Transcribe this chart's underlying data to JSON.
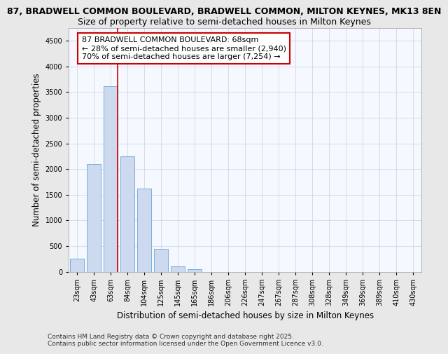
{
  "title_line1": "87, BRADWELL COMMON BOULEVARD, BRADWELL COMMON, MILTON KEYNES, MK13 8EN",
  "title_line2": "Size of property relative to semi-detached houses in Milton Keynes",
  "xlabel": "Distribution of semi-detached houses by size in Milton Keynes",
  "ylabel": "Number of semi-detached properties",
  "footnote": "Contains HM Land Registry data © Crown copyright and database right 2025.\nContains public sector information licensed under the Open Government Licence v3.0.",
  "categories": [
    "23sqm",
    "43sqm",
    "63sqm",
    "84sqm",
    "104sqm",
    "125sqm",
    "145sqm",
    "165sqm",
    "186sqm",
    "206sqm",
    "226sqm",
    "247sqm",
    "267sqm",
    "287sqm",
    "308sqm",
    "328sqm",
    "349sqm",
    "369sqm",
    "389sqm",
    "410sqm",
    "430sqm"
  ],
  "values": [
    250,
    2100,
    3620,
    2250,
    1620,
    440,
    100,
    50,
    0,
    0,
    0,
    0,
    0,
    0,
    0,
    0,
    0,
    0,
    0,
    0,
    0
  ],
  "bar_color": "#ccd9ee",
  "bar_edge_color": "#7bafd4",
  "vline_color": "#cc0000",
  "vline_x": 2.4,
  "annotation_text": "87 BRADWELL COMMON BOULEVARD: 68sqm\n← 28% of semi-detached houses are smaller (2,940)\n70% of semi-detached houses are larger (7,254) →",
  "ylim": [
    0,
    4750
  ],
  "yticks": [
    0,
    500,
    1000,
    1500,
    2000,
    2500,
    3000,
    3500,
    4000,
    4500
  ],
  "bg_color": "#e8e8e8",
  "plot_bg_color": "#f5f8ff",
  "grid_color": "#c8d0e0",
  "title_fontsize": 9,
  "subtitle_fontsize": 9,
  "axis_label_fontsize": 8.5,
  "tick_fontsize": 7,
  "annotation_fontsize": 8,
  "footnote_fontsize": 6.5
}
